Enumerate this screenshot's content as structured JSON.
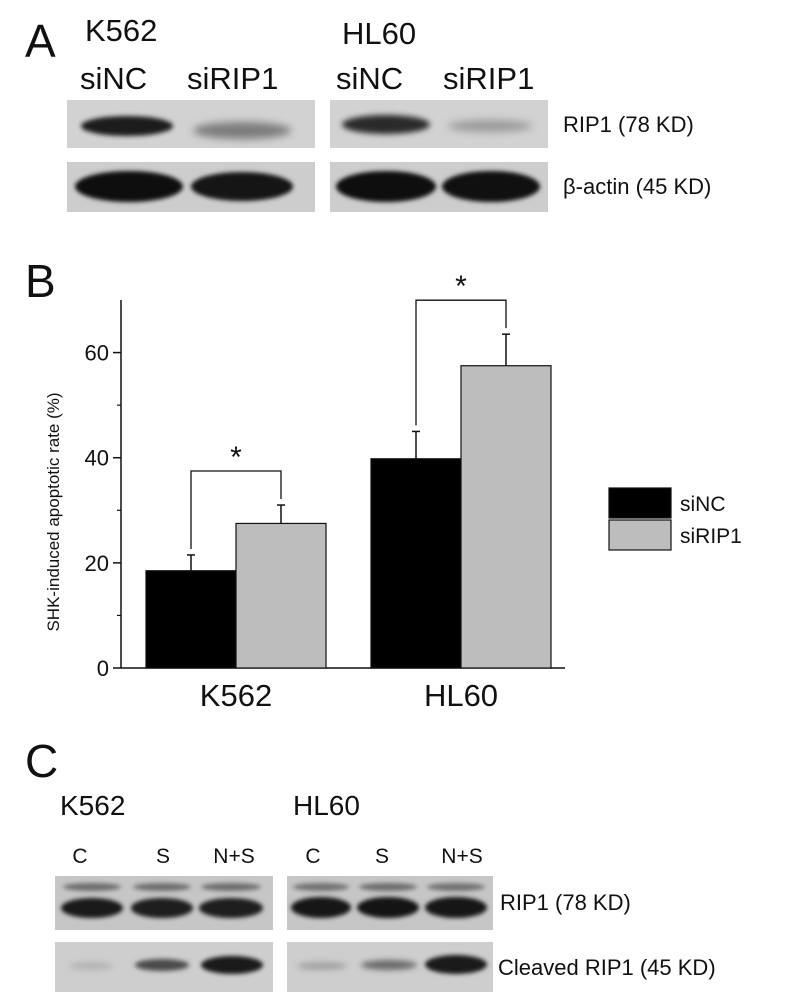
{
  "panel_a": {
    "letter": "A",
    "groups": [
      {
        "cell_line": "K562",
        "lanes": [
          "siNC",
          "siRIP1"
        ]
      },
      {
        "cell_line": "HL60",
        "lanes": [
          "siNC",
          "siRIP1"
        ]
      }
    ],
    "rows": [
      {
        "label": "RIP1 (78 KD)"
      },
      {
        "label": "β-actin (45 KD)"
      }
    ]
  },
  "panel_b": {
    "letter": "B",
    "legend": {
      "position": "right"
    }
  },
  "chart_data": {
    "type": "bar",
    "title": "",
    "xlabel": "",
    "ylabel": "SHK-induced apoptotic rate (%)",
    "categories": [
      "K562",
      "HL60"
    ],
    "series": [
      {
        "name": "siNC",
        "color": "#000000",
        "values": [
          18.5,
          39.8
        ],
        "errors": [
          3.0,
          5.2
        ]
      },
      {
        "name": "siRIP1",
        "color": "#bdbdbd",
        "values": [
          27.5,
          57.5
        ],
        "errors": [
          3.5,
          6.0
        ]
      }
    ],
    "ylim": [
      0,
      70
    ],
    "yticks": [
      0,
      20,
      40,
      60
    ],
    "grid": false,
    "annotations": [
      {
        "text": "*",
        "category": "K562",
        "between": [
          "siNC",
          "siRIP1"
        ]
      },
      {
        "text": "*",
        "category": "HL60",
        "between": [
          "siNC",
          "siRIP1"
        ]
      }
    ]
  },
  "panel_c": {
    "letter": "C",
    "groups": [
      {
        "cell_line": "K562",
        "lanes": [
          "C",
          "S",
          "N+S"
        ]
      },
      {
        "cell_line": "HL60",
        "lanes": [
          "C",
          "S",
          "N+S"
        ]
      }
    ],
    "rows": [
      {
        "label": "RIP1 (78 KD)"
      },
      {
        "label": "Cleaved RIP1 (45 KD)"
      }
    ]
  }
}
